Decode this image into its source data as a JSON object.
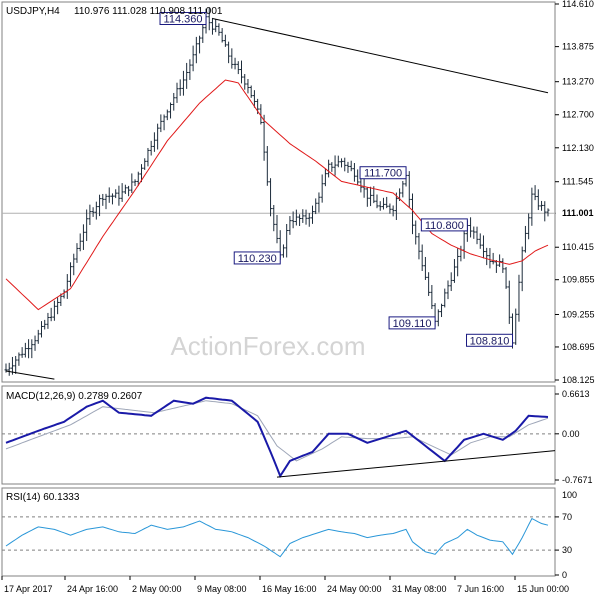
{
  "chart_data": {
    "type": "ohlc",
    "title": "USDJPY,H4",
    "ohlc_label": "110.976 111.028 110.908 111.001",
    "watermark": "ActionForex.com",
    "colors": {
      "bars": "#1c2b3a",
      "ma": "#e01919",
      "trendline": "#000000",
      "macd": "#1a1aa8",
      "signal": "#9ea6b8",
      "rsi": "#2a97d8",
      "price_box_border": "#1a1a80"
    },
    "price_axis": {
      "min": 108.125,
      "max": 114.61,
      "ticks": [
        "114.610",
        "113.875",
        "113.270",
        "112.700",
        "112.130",
        "111.545",
        "111.001",
        "110.415",
        "109.855",
        "109.255",
        "108.695",
        "108.125"
      ],
      "last_price": "111.001"
    },
    "x_axis": {
      "labels": [
        "17 Apr 2017",
        "24 Apr 16:00",
        "2 May 00:00",
        "9 May 08:00",
        "16 May 16:00",
        "24 May 00:00",
        "31 May 08:00",
        "7 Jun 16:00",
        "15 Jun 00:00"
      ]
    },
    "price_anchors": [
      [
        0,
        108.3
      ],
      [
        5,
        108.6
      ],
      [
        10,
        108.9
      ],
      [
        15,
        109.35
      ],
      [
        18,
        109.65
      ],
      [
        22,
        110.4
      ],
      [
        26,
        111.0
      ],
      [
        30,
        111.3
      ],
      [
        35,
        111.3
      ],
      [
        40,
        111.55
      ],
      [
        45,
        112.2
      ],
      [
        50,
        112.8
      ],
      [
        55,
        113.3
      ],
      [
        58,
        113.7
      ],
      [
        62,
        114.36
      ],
      [
        66,
        114.1
      ],
      [
        70,
        113.6
      ],
      [
        75,
        113.2
      ],
      [
        79,
        112.6
      ],
      [
        82,
        111.1
      ],
      [
        85,
        110.23
      ],
      [
        88,
        110.9
      ],
      [
        92,
        110.9
      ],
      [
        95,
        111.0
      ],
      [
        100,
        111.8
      ],
      [
        104,
        111.9
      ],
      [
        108,
        111.7
      ],
      [
        112,
        111.3
      ],
      [
        116,
        111.1
      ],
      [
        120,
        111.1
      ],
      [
        124,
        111.7
      ],
      [
        126,
        110.8
      ],
      [
        130,
        109.9
      ],
      [
        133,
        109.11
      ],
      [
        136,
        109.6
      ],
      [
        140,
        110.2
      ],
      [
        143,
        110.8
      ],
      [
        146,
        110.6
      ],
      [
        150,
        110.2
      ],
      [
        154,
        110.1
      ],
      [
        157,
        108.81
      ],
      [
        160,
        110.3
      ],
      [
        163,
        111.3
      ],
      [
        166,
        111.1
      ],
      [
        168,
        111.001
      ]
    ],
    "ma_anchors": [
      [
        0,
        109.87
      ],
      [
        10,
        109.34
      ],
      [
        20,
        109.7
      ],
      [
        30,
        110.6
      ],
      [
        40,
        111.4
      ],
      [
        50,
        112.25
      ],
      [
        60,
        112.9
      ],
      [
        68,
        113.3
      ],
      [
        72,
        113.25
      ],
      [
        80,
        112.6
      ],
      [
        88,
        112.2
      ],
      [
        96,
        111.9
      ],
      [
        104,
        111.55
      ],
      [
        112,
        111.45
      ],
      [
        120,
        111.35
      ],
      [
        126,
        111.05
      ],
      [
        132,
        110.65
      ],
      [
        138,
        110.45
      ],
      [
        144,
        110.3
      ],
      [
        150,
        110.2
      ],
      [
        156,
        110.12
      ],
      [
        160,
        110.18
      ],
      [
        164,
        110.35
      ],
      [
        168,
        110.45
      ]
    ],
    "price_labels": [
      {
        "text": "114.360",
        "bar": 62,
        "price": 114.36,
        "side": "left"
      },
      {
        "text": "110.230",
        "bar": 85,
        "price": 110.23,
        "side": "left"
      },
      {
        "text": "111.700",
        "bar": 124,
        "price": 111.7,
        "side": "left"
      },
      {
        "text": "110.800",
        "bar": 143,
        "price": 110.8,
        "side": "left"
      },
      {
        "text": "109.110",
        "bar": 133,
        "price": 109.11,
        "side": "left"
      },
      {
        "text": "108.810",
        "bar": 157,
        "price": 108.81,
        "side": "left"
      }
    ],
    "trendlines": [
      {
        "pane": "price",
        "from": [
          64,
          114.36
        ],
        "to": [
          168,
          113.08
        ]
      },
      {
        "pane": "price",
        "from": [
          0,
          108.28
        ],
        "to": [
          15,
          108.14
        ]
      }
    ],
    "macd": {
      "label": "MACD(12,26,9) 0.2789 0.2607",
      "range": [
        -0.7671,
        0.6613
      ],
      "ticks": [
        "0.6613",
        "0.00",
        "-0.7671"
      ],
      "main_anchors": [
        [
          0,
          -0.15
        ],
        [
          10,
          0.05
        ],
        [
          18,
          0.2
        ],
        [
          25,
          0.45
        ],
        [
          30,
          0.55
        ],
        [
          35,
          0.35
        ],
        [
          45,
          0.3
        ],
        [
          52,
          0.55
        ],
        [
          58,
          0.5
        ],
        [
          62,
          0.6
        ],
        [
          70,
          0.55
        ],
        [
          78,
          0.2
        ],
        [
          82,
          -0.3
        ],
        [
          85,
          -0.7
        ],
        [
          88,
          -0.45
        ],
        [
          95,
          -0.3
        ],
        [
          100,
          0.0
        ],
        [
          106,
          0.0
        ],
        [
          112,
          -0.15
        ],
        [
          118,
          -0.05
        ],
        [
          124,
          0.05
        ],
        [
          130,
          -0.2
        ],
        [
          136,
          -0.45
        ],
        [
          142,
          -0.1
        ],
        [
          148,
          0.0
        ],
        [
          154,
          -0.1
        ],
        [
          158,
          0.05
        ],
        [
          162,
          0.3
        ],
        [
          168,
          0.28
        ]
      ],
      "signal_anchors": [
        [
          0,
          -0.25
        ],
        [
          10,
          -0.05
        ],
        [
          20,
          0.15
        ],
        [
          30,
          0.45
        ],
        [
          38,
          0.4
        ],
        [
          46,
          0.35
        ],
        [
          54,
          0.45
        ],
        [
          62,
          0.55
        ],
        [
          70,
          0.5
        ],
        [
          78,
          0.3
        ],
        [
          84,
          -0.2
        ],
        [
          90,
          -0.45
        ],
        [
          98,
          -0.25
        ],
        [
          104,
          -0.05
        ],
        [
          112,
          -0.08
        ],
        [
          120,
          -0.08
        ],
        [
          126,
          -0.05
        ],
        [
          132,
          -0.2
        ],
        [
          138,
          -0.35
        ],
        [
          144,
          -0.15
        ],
        [
          150,
          -0.05
        ],
        [
          156,
          -0.05
        ],
        [
          162,
          0.15
        ],
        [
          168,
          0.26
        ]
      ],
      "trendline": {
        "from": [
          84,
          -0.72
        ],
        "to": [
          168,
          -0.28
        ]
      }
    },
    "rsi": {
      "label": "RSI(14) 60.1333",
      "range": [
        0,
        100
      ],
      "ticks": [
        "100",
        "70",
        "30",
        "0"
      ],
      "levels": [
        70,
        30
      ],
      "anchors": [
        [
          0,
          35
        ],
        [
          5,
          48
        ],
        [
          10,
          58
        ],
        [
          15,
          55
        ],
        [
          20,
          48
        ],
        [
          25,
          55
        ],
        [
          30,
          58
        ],
        [
          35,
          52
        ],
        [
          40,
          50
        ],
        [
          45,
          60
        ],
        [
          50,
          55
        ],
        [
          55,
          58
        ],
        [
          60,
          65
        ],
        [
          65,
          55
        ],
        [
          70,
          52
        ],
        [
          75,
          45
        ],
        [
          80,
          35
        ],
        [
          85,
          22
        ],
        [
          88,
          38
        ],
        [
          92,
          45
        ],
        [
          96,
          50
        ],
        [
          100,
          55
        ],
        [
          104,
          52
        ],
        [
          108,
          50
        ],
        [
          112,
          45
        ],
        [
          116,
          48
        ],
        [
          120,
          50
        ],
        [
          124,
          55
        ],
        [
          126,
          40
        ],
        [
          130,
          28
        ],
        [
          133,
          25
        ],
        [
          136,
          38
        ],
        [
          140,
          45
        ],
        [
          143,
          55
        ],
        [
          146,
          48
        ],
        [
          150,
          42
        ],
        [
          154,
          40
        ],
        [
          157,
          25
        ],
        [
          160,
          45
        ],
        [
          163,
          68
        ],
        [
          166,
          62
        ],
        [
          168,
          60
        ]
      ]
    }
  }
}
